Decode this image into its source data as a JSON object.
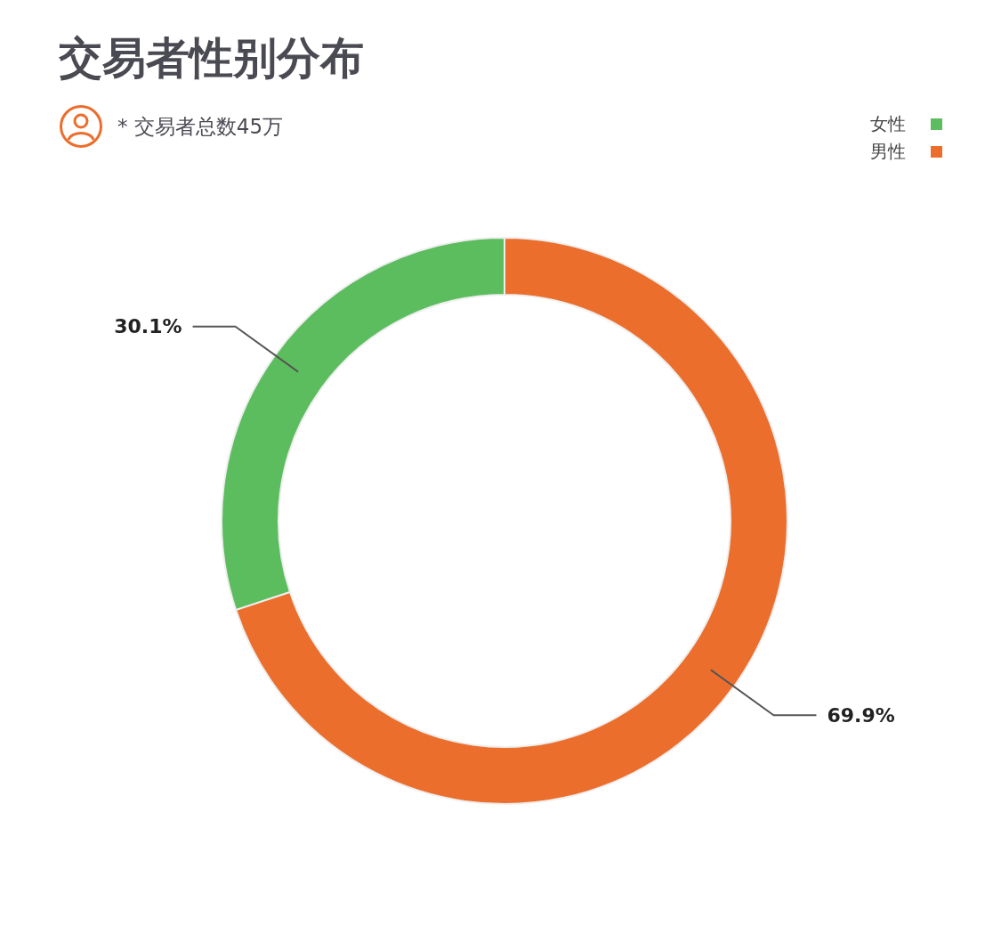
{
  "chart_data": {
    "type": "donut",
    "title": "交易者性别分布",
    "subtitle": "* 交易者总数45万",
    "categories": [
      "女性",
      "男性"
    ],
    "values": [
      30.1,
      69.9
    ],
    "colors": [
      "#5cbd5e",
      "#ec6e2c"
    ],
    "value_labels": [
      "30.1%",
      "69.9%"
    ],
    "legend": "top right"
  }
}
